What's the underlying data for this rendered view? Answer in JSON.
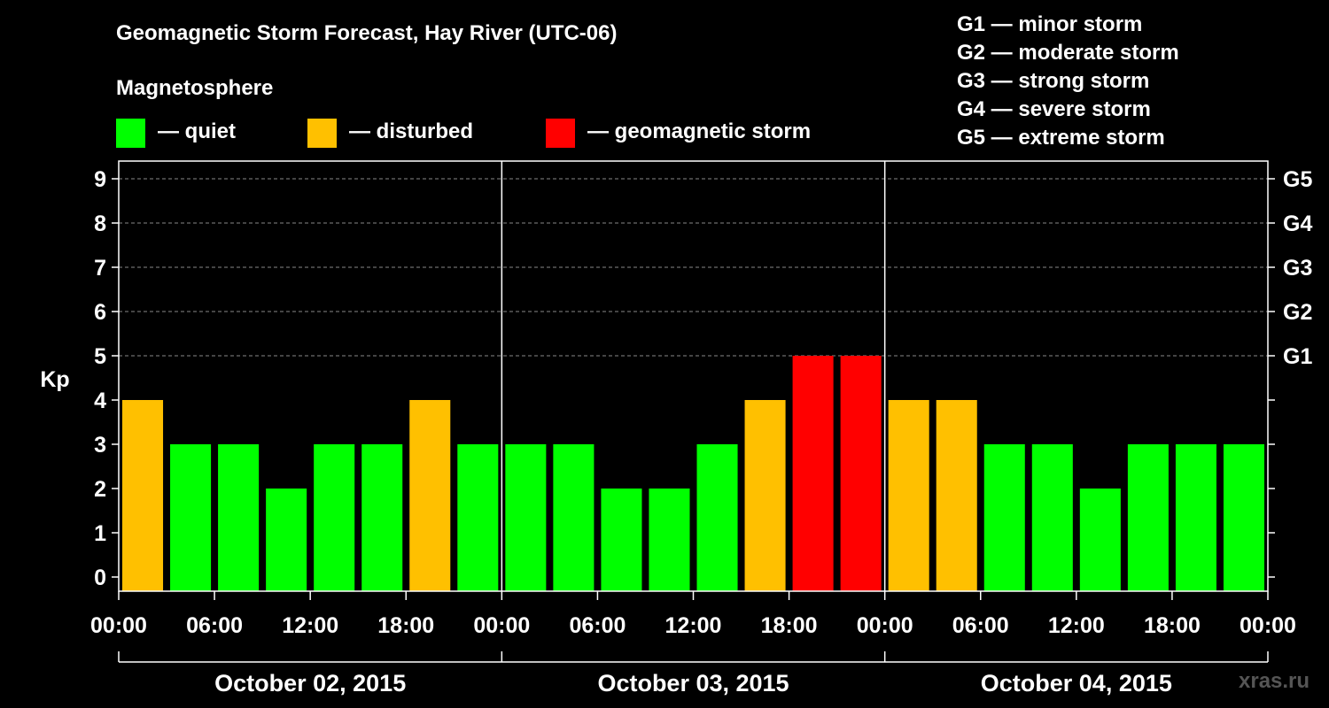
{
  "chart_data": {
    "type": "bar",
    "title": "Geomagnetic Storm Forecast, Hay River (UTC-06)",
    "ylabel": "Kp",
    "ylim": [
      0,
      9
    ],
    "y_ticks": [
      "0",
      "1",
      "2",
      "3",
      "4",
      "5",
      "6",
      "7",
      "8",
      "9"
    ],
    "right_axis_labels": [
      {
        "kp": 5,
        "label": "G1"
      },
      {
        "kp": 6,
        "label": "G2"
      },
      {
        "kp": 7,
        "label": "G3"
      },
      {
        "kp": 8,
        "label": "G4"
      },
      {
        "kp": 9,
        "label": "G5"
      }
    ],
    "x_tick_labels": [
      "00:00",
      "06:00",
      "12:00",
      "18:00",
      "00:00",
      "06:00",
      "12:00",
      "18:00",
      "00:00",
      "06:00",
      "12:00",
      "18:00",
      "00:00"
    ],
    "days": [
      "October 02, 2015",
      "October 03, 2015",
      "October 04, 2015"
    ],
    "interval_hours": 3,
    "values": [
      4,
      3,
      3,
      2,
      3,
      3,
      4,
      3,
      3,
      3,
      2,
      2,
      3,
      4,
      5,
      5,
      4,
      4,
      3,
      3,
      2,
      3,
      3,
      3
    ],
    "grid": "dashed horizontal at G levels",
    "legend": {
      "title": "Magnetosphere",
      "items": [
        {
          "label": "— quiet",
          "color": "#00FF00",
          "kp_range": "0-3"
        },
        {
          "label": "— disturbed",
          "color": "#FFC000",
          "kp_range": "4"
        },
        {
          "label": "— geomagnetic storm",
          "color": "#FF0000",
          "kp_range": "5-9"
        }
      ]
    },
    "g_scale": [
      "G1 — minor storm",
      "G2 — moderate storm",
      "G3 — strong storm",
      "G4 — severe storm",
      "G5 — extreme storm"
    ]
  },
  "watermark": "xras.ru"
}
